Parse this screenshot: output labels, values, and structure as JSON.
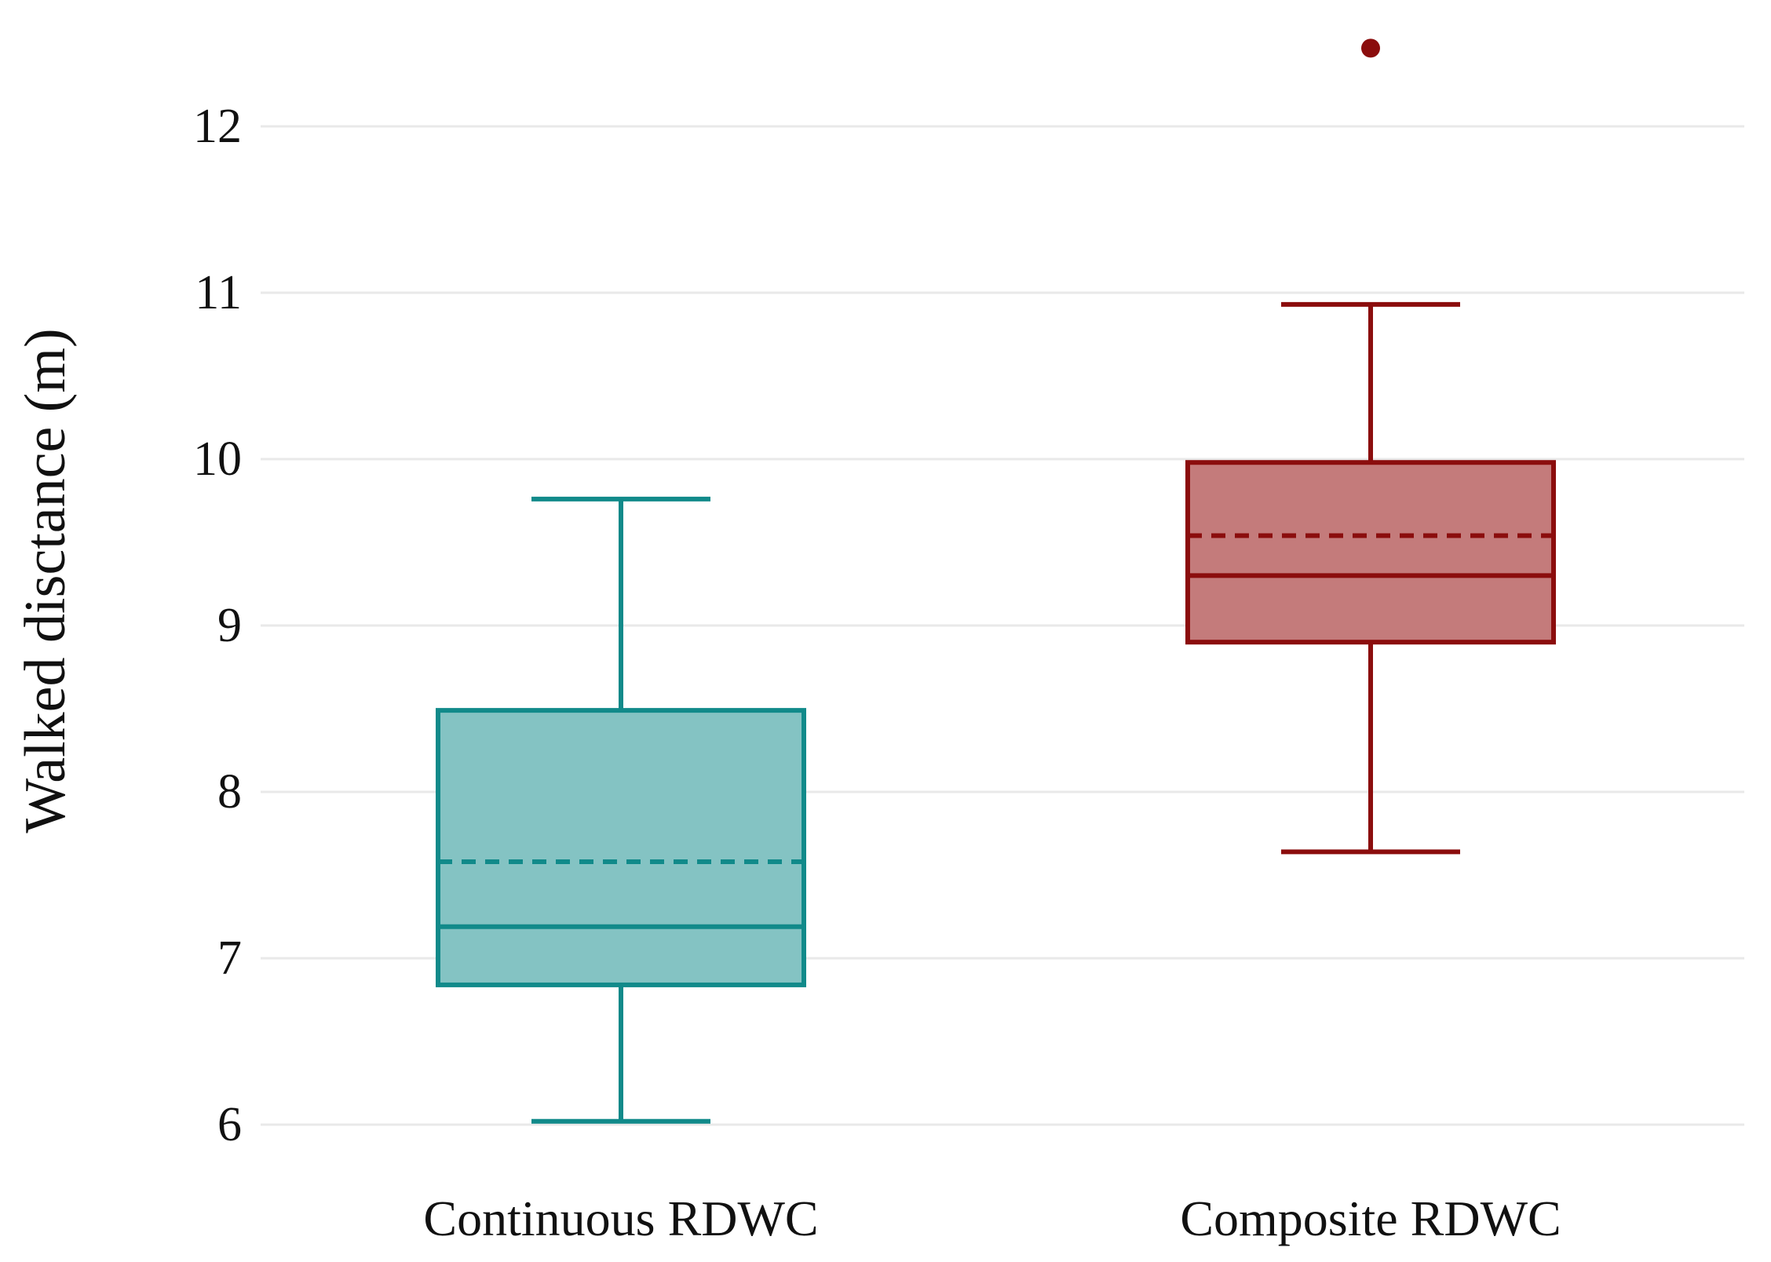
{
  "chart_data": {
    "type": "box",
    "ylabel": "Walked disctance (m)",
    "xlabel": "",
    "ylim": [
      5.8,
      12.9
    ],
    "yticks": [
      6,
      7,
      8,
      9,
      10,
      11,
      12
    ],
    "grid": true,
    "categories": [
      "Continuous RDWC",
      "Composite RDWC"
    ],
    "series": [
      {
        "category": "Continuous RDWC",
        "color": "#118a8a",
        "fill": "#84c3c3",
        "whisker_low": 6.02,
        "q1": 6.84,
        "median": 7.19,
        "mean": 7.58,
        "q3": 8.49,
        "whisker_high": 9.76,
        "outliers": []
      },
      {
        "category": "Composite RDWC",
        "color": "#8b0d0d",
        "fill": "#c47b7b",
        "whisker_low": 7.64,
        "q1": 8.9,
        "median": 9.3,
        "mean": 9.54,
        "q3": 9.98,
        "whisker_high": 10.93,
        "outliers": [
          12.47
        ]
      }
    ]
  }
}
